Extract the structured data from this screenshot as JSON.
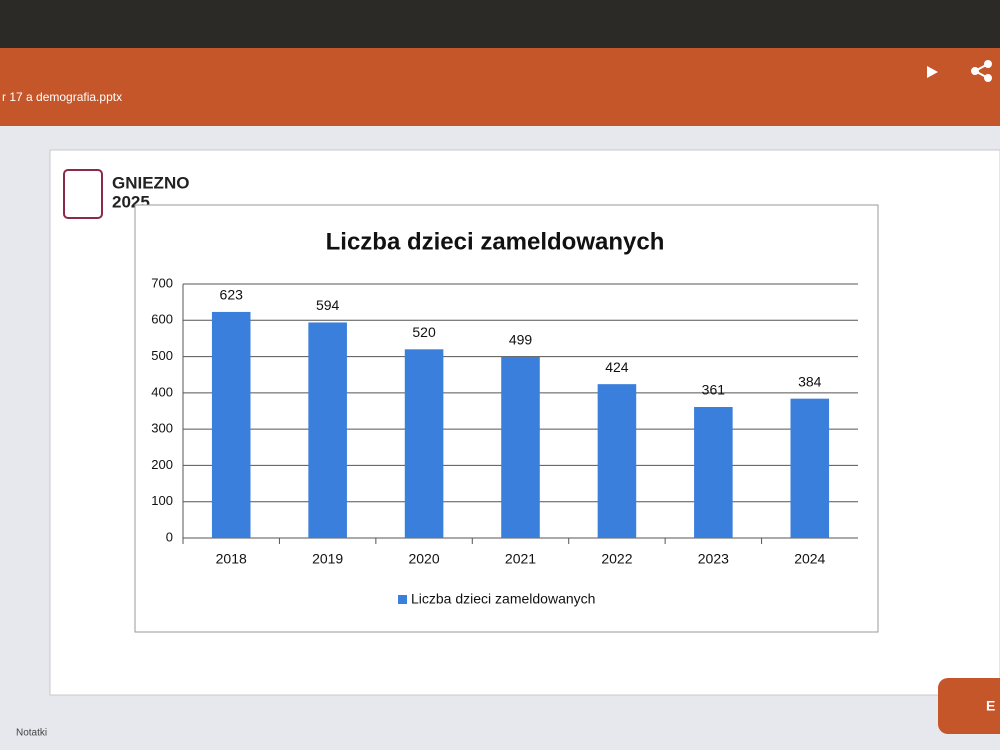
{
  "app": {
    "filename": "r 17 a demografia.pptx",
    "notes": "Notatki",
    "edit": "E"
  },
  "logo": {
    "line1": "GNIEZNO",
    "line2": "2025"
  },
  "chart_data": {
    "type": "bar",
    "title": "Liczba dzieci zameldowanych",
    "categories": [
      "2018",
      "2019",
      "2020",
      "2021",
      "2022",
      "2023",
      "2024"
    ],
    "series": [
      {
        "name": "Liczba dzieci zameldowanych",
        "color": "#3b7fdc",
        "values": [
          623,
          594,
          520,
          499,
          424,
          361,
          384
        ]
      }
    ],
    "ylim": [
      0,
      700
    ],
    "yticks": [
      0,
      100,
      200,
      300,
      400,
      500,
      600,
      700
    ],
    "grid": true,
    "legend": "bottom"
  }
}
